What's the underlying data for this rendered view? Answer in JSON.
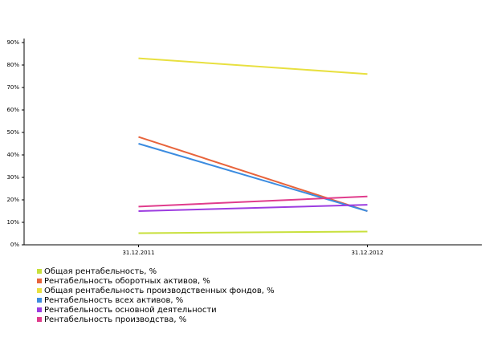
{
  "chart_data": {
    "type": "line",
    "categories": [
      "31.12.2011",
      "31.12.2012"
    ],
    "series": [
      {
        "name": "Общая рентабельность, %",
        "color": "#c8e03c",
        "values": [
          5.2,
          5.9
        ]
      },
      {
        "name": "Рентабельность оборотных активов, %",
        "color": "#e8643c",
        "values": [
          48,
          15
        ]
      },
      {
        "name": "Общая рентабельность производственных фондов, %",
        "color": "#e8e040",
        "values": [
          83,
          76
        ]
      },
      {
        "name": "Рентабельность всех активов, %",
        "color": "#3c8ce0",
        "values": [
          45,
          15
        ]
      },
      {
        "name": "Рентабельность основной деятельности",
        "color": "#9c3ce0",
        "values": [
          15,
          17.8
        ]
      },
      {
        "name": "Рентабельность производства, %",
        "color": "#e03c8c",
        "values": [
          17,
          21.5
        ]
      }
    ],
    "ylim": [
      0,
      90
    ],
    "yticks": [
      {
        "value": 0,
        "label": "0%"
      },
      {
        "value": 10,
        "label": "10%"
      },
      {
        "value": 20,
        "label": "20%"
      },
      {
        "value": 30,
        "label": "30%"
      },
      {
        "value": 40,
        "label": "40%"
      },
      {
        "value": 50,
        "label": "50%"
      },
      {
        "value": 60,
        "label": "60%"
      },
      {
        "value": 70,
        "label": "70%"
      },
      {
        "value": 80,
        "label": "80%"
      },
      {
        "value": 90,
        "label": "90%"
      }
    ],
    "grid": false,
    "legend": "bottom-left"
  }
}
